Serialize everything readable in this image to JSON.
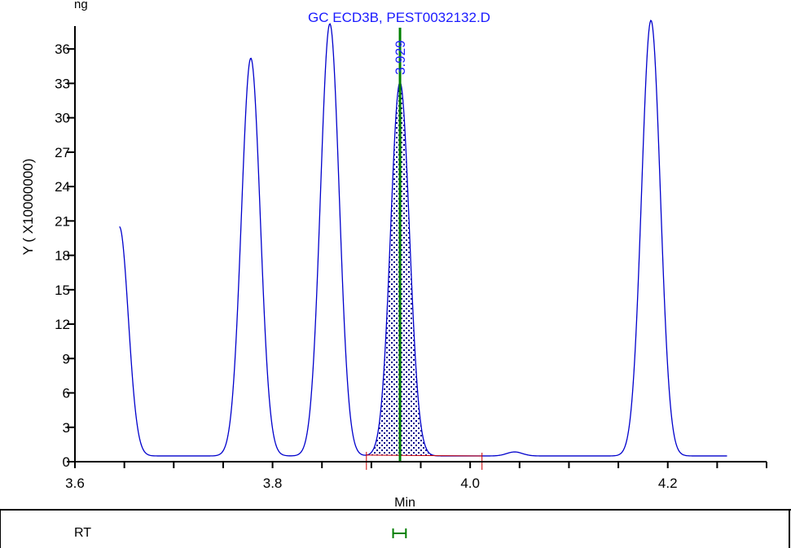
{
  "window": {
    "header_fragment": "ng"
  },
  "chart_data": {
    "type": "line",
    "title": "GC ECD3B, PEST0032132.D",
    "xlabel": "Min",
    "ylabel": "Y ( X10000000)",
    "xlim": [
      3.6,
      4.3
    ],
    "ylim": [
      0,
      38
    ],
    "x_ticks": [
      3.6,
      3.8,
      4.0,
      4.2
    ],
    "x_tick_labels": [
      "3.6",
      "3.8",
      "4.0",
      "4.2"
    ],
    "y_ticks": [
      0,
      3,
      6,
      9,
      12,
      15,
      18,
      21,
      24,
      27,
      30,
      33,
      36
    ],
    "y_tick_labels": [
      "0",
      "3",
      "6",
      "9",
      "12",
      "15",
      "18",
      "21",
      "24",
      "27",
      "30",
      "33",
      "36"
    ],
    "grid": false,
    "series": [
      {
        "color": "#0000cc",
        "baseline": 0.5,
        "start": {
          "x": 3.645,
          "y": 20.5
        },
        "peaks": [
          {
            "x": 3.778,
            "height": 34.7,
            "width": 0.0095
          },
          {
            "x": 3.858,
            "height": 37.7,
            "width": 0.0095
          },
          {
            "x": 3.929,
            "height": 32.6,
            "width": 0.0095
          },
          {
            "x": 4.045,
            "height": 0.35,
            "width": 0.008
          },
          {
            "x": 4.183,
            "height": 38.0,
            "width": 0.0095
          }
        ],
        "x_end": 4.26
      }
    ],
    "integrated_peak": {
      "rt": 3.929,
      "rt_label": "3.929",
      "start": 3.895,
      "end": 4.012,
      "rt_marker_color": "#008000",
      "baseline_color": "#cc0000",
      "fill": "dotted"
    }
  },
  "rt_panel": {
    "label": "RT",
    "marker_color": "#008000",
    "marker_from": 3.922,
    "marker_to": 3.935
  }
}
